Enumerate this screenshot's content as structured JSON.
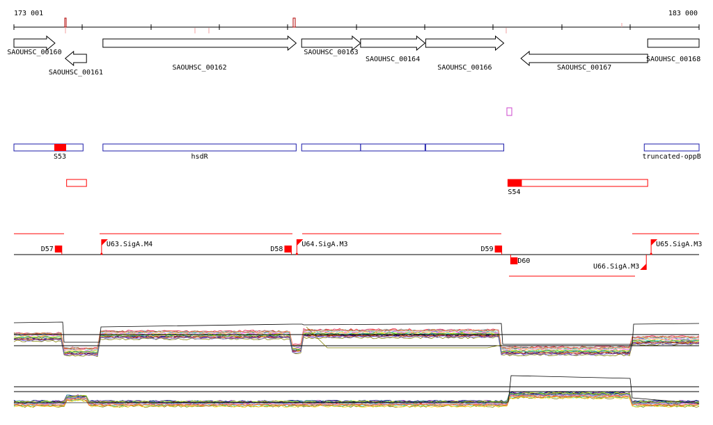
{
  "ruler": {
    "start_label": "173 001",
    "end_label": "183 000",
    "range": [
      173001,
      183000
    ]
  },
  "genes": [
    {
      "id": "SAOUHSC_00160",
      "start": 173001,
      "end": 173600,
      "strand": "+"
    },
    {
      "id": "SAOUHSC_00161",
      "start": 173750,
      "end": 174060,
      "strand": "-"
    },
    {
      "id": "SAOUHSC_00162",
      "start": 174300,
      "end": 177120,
      "strand": "+"
    },
    {
      "id": "SAOUHSC_00163",
      "start": 177200,
      "end": 178060,
      "strand": "+"
    },
    {
      "id": "SAOUHSC_00164",
      "start": 178060,
      "end": 179000,
      "strand": "+"
    },
    {
      "id": "SAOUHSC_00166",
      "start": 179010,
      "end": 180150,
      "strand": "+"
    },
    {
      "id": "SAOUHSC_00167",
      "start": 180400,
      "end": 182250,
      "strand": "-"
    },
    {
      "id": "SAOUHSC_00168",
      "start": 182250,
      "end": 183000,
      "strand": "+"
    }
  ],
  "operons": [
    {
      "label": "S53",
      "start": 173001,
      "end": 174010
    },
    {
      "label": "hsdR",
      "start": 174300,
      "end": 177120
    },
    {
      "label": "",
      "start": 177200,
      "end": 178060
    },
    {
      "label": "",
      "start": 178060,
      "end": 179000
    },
    {
      "label": "",
      "start": 179010,
      "end": 180150
    },
    {
      "label": "truncated-oppB",
      "start": 182200,
      "end": 183000
    }
  ],
  "antisense": [
    {
      "label": "",
      "start": 173770,
      "end": 174060
    },
    {
      "label": "S54",
      "start": 180210,
      "end": 182250
    }
  ],
  "promoters_forward": [
    {
      "label": "U63.SigA.M4",
      "pos": 174280
    },
    {
      "label": "U64.SigA.M3",
      "pos": 177130
    },
    {
      "label": "U65.SigA.M3",
      "pos": 182300
    }
  ],
  "terminators_forward": [
    {
      "label": "D57",
      "pos": 173700
    },
    {
      "label": "D58",
      "pos": 177050
    },
    {
      "label": "D59",
      "pos": 180120
    }
  ],
  "promoters_reverse": [
    {
      "label": "U66.SigA.M3",
      "pos": 182230
    }
  ],
  "terminators_reverse": [
    {
      "label": "D60",
      "pos": 180250
    }
  ],
  "colors": {
    "gene_outline": "#000000",
    "operon_outline": "#1a1aa8",
    "feature_red": "#ff0000",
    "outlier_magenta": "#cc44cc"
  }
}
